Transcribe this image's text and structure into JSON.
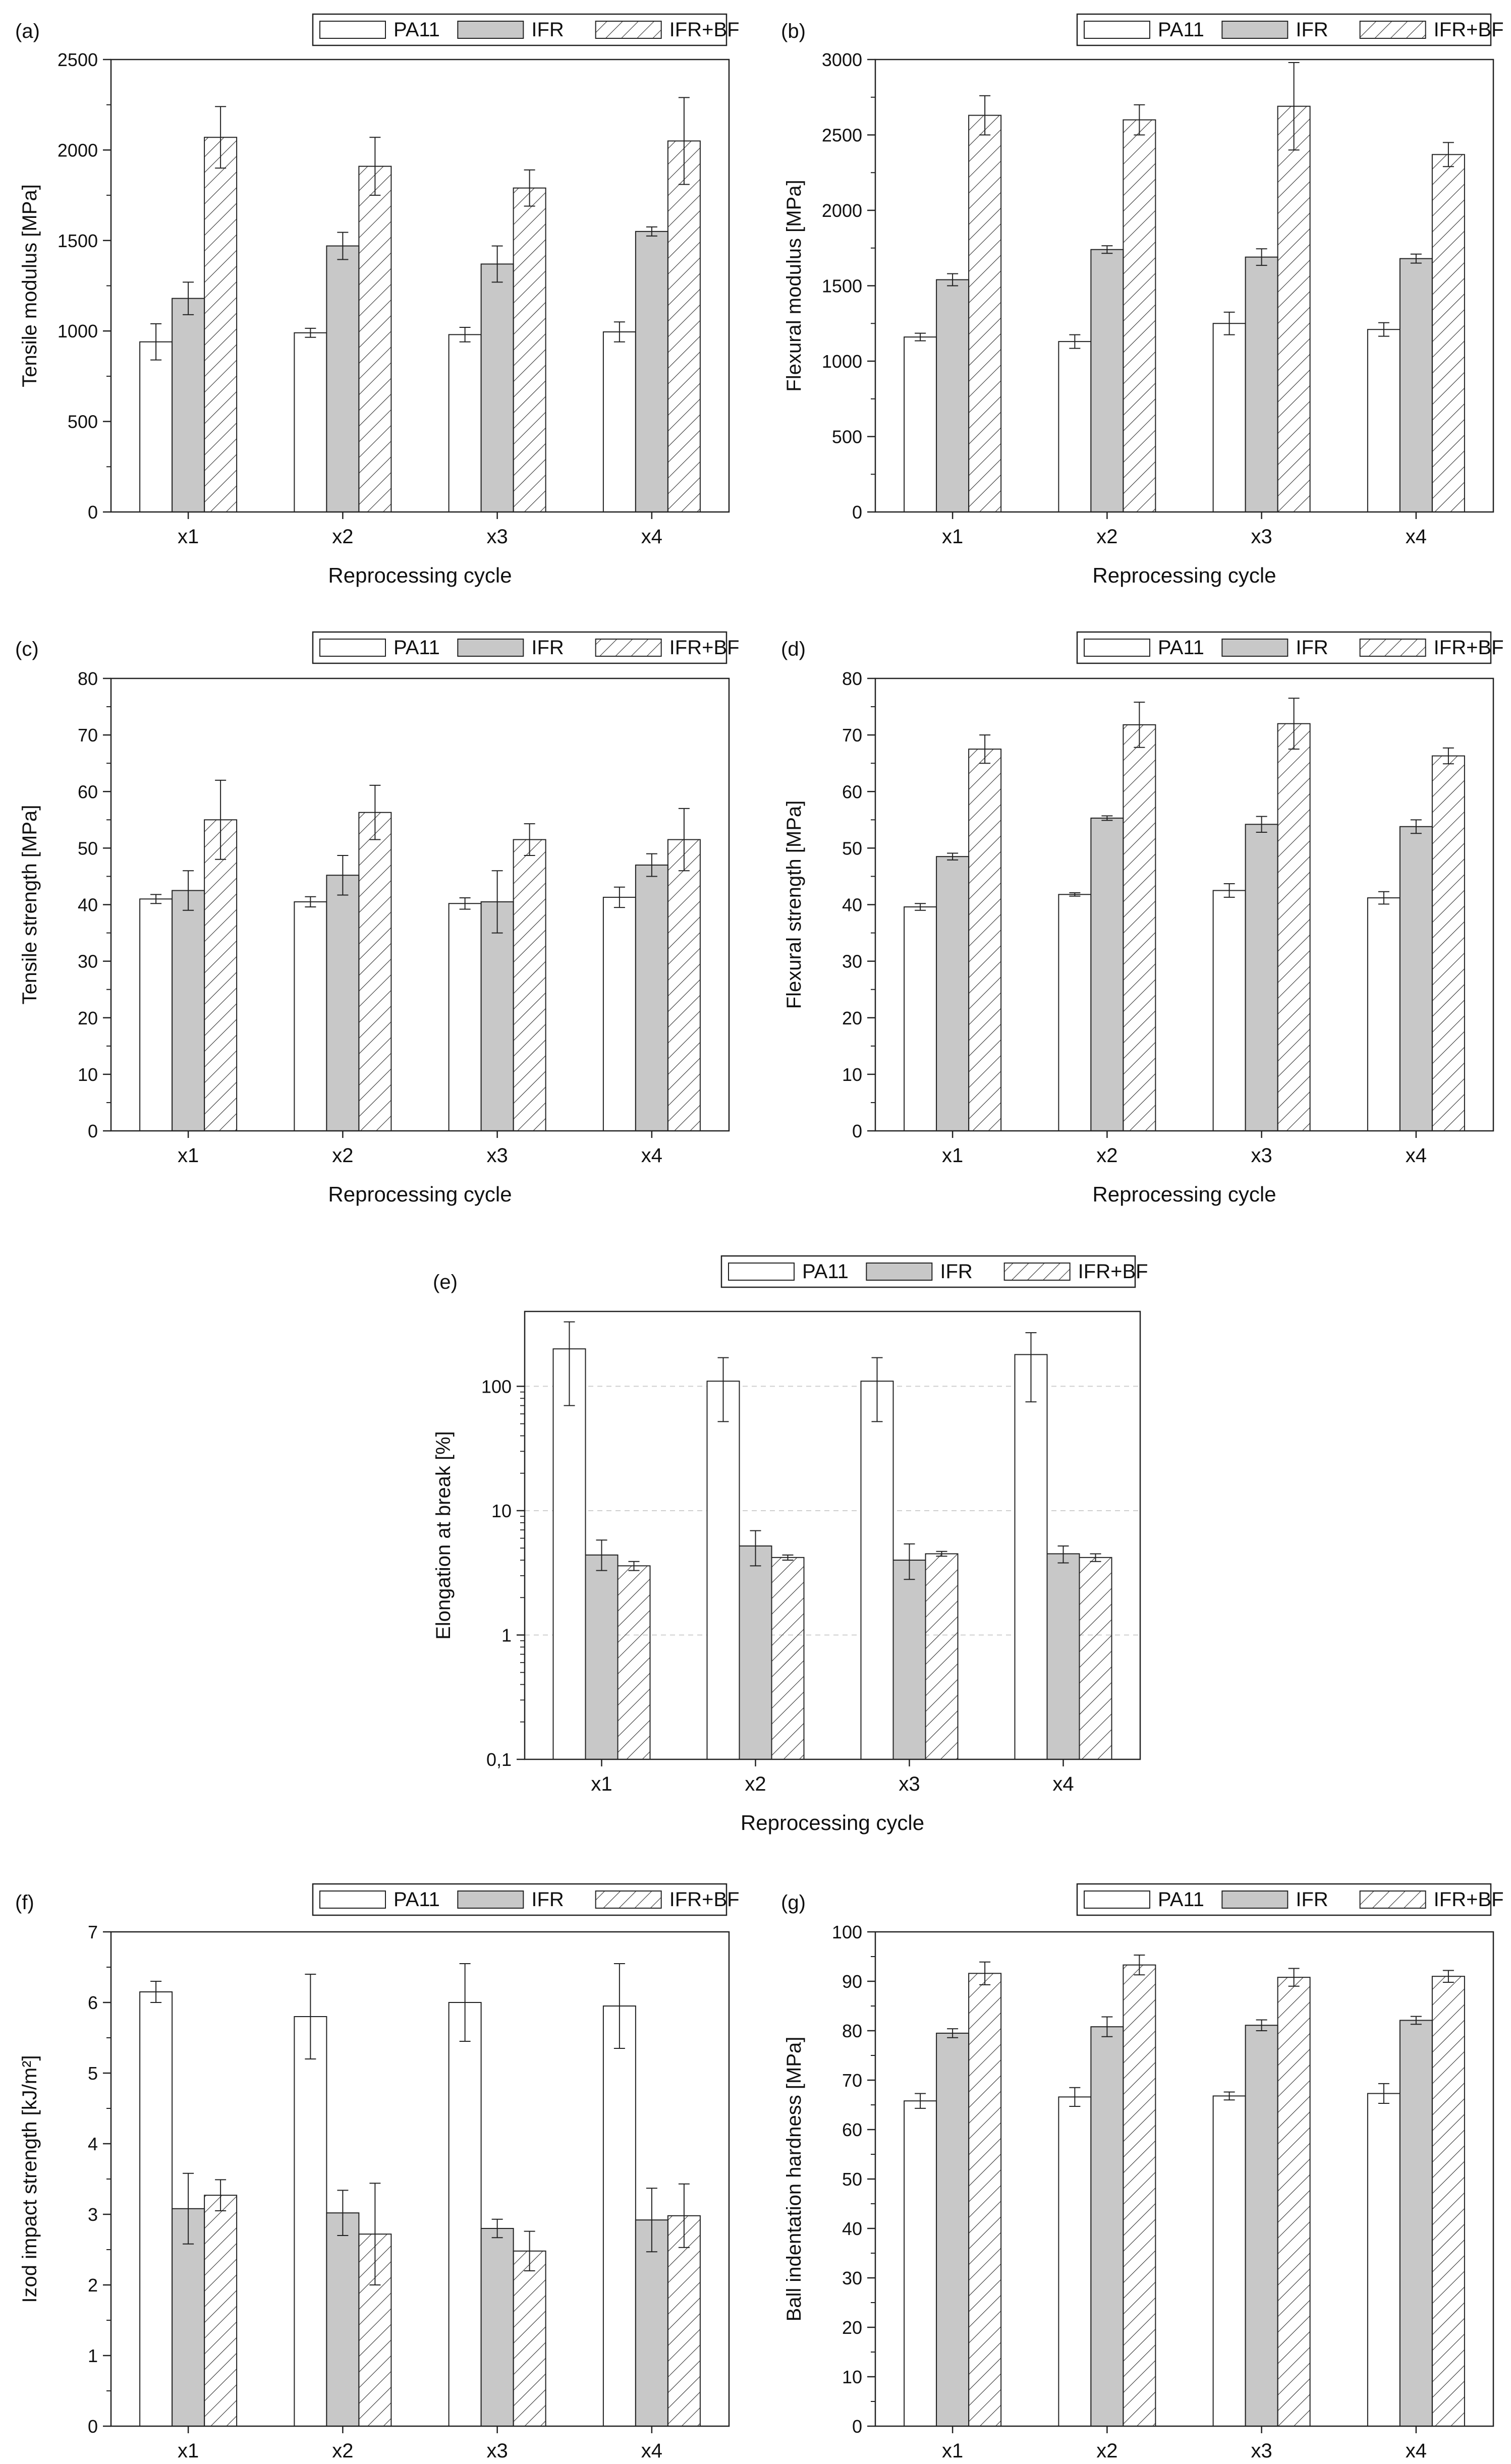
{
  "figure": {
    "series_names": [
      "PA11",
      "IFR",
      "IFR+BF"
    ],
    "series_styles": [
      {
        "fill": "#ffffff",
        "hatch": false
      },
      {
        "fill": "#c8c8c8",
        "hatch": false
      },
      {
        "fill": "#ffffff",
        "hatch": true
      }
    ]
  },
  "chart_data": [
    {
      "id": "a",
      "panel": "(a)",
      "type": "bar",
      "categories": [
        "x1",
        "x2",
        "x3",
        "x4"
      ],
      "xlabel": "Reprocessing cycle",
      "ylabel": "Tensile modulus [MPa]",
      "ylim": [
        0,
        2500
      ],
      "yticks": [
        0,
        500,
        1000,
        1500,
        2000,
        2500
      ],
      "yscale": "linear",
      "legend": "top-right",
      "series": [
        {
          "name": "PA11",
          "values": [
            940,
            990,
            980,
            995
          ],
          "errors": [
            100,
            25,
            40,
            55
          ]
        },
        {
          "name": "IFR",
          "values": [
            1180,
            1470,
            1370,
            1550
          ],
          "errors": [
            90,
            75,
            100,
            25
          ]
        },
        {
          "name": "IFR+BF",
          "values": [
            2070,
            1910,
            1790,
            2050
          ],
          "errors": [
            170,
            160,
            100,
            240
          ]
        }
      ]
    },
    {
      "id": "b",
      "panel": "(b)",
      "type": "bar",
      "categories": [
        "x1",
        "x2",
        "x3",
        "x4"
      ],
      "xlabel": "Reprocessing cycle",
      "ylabel": "Flexural modulus [MPa]",
      "ylim": [
        0,
        3000
      ],
      "yticks": [
        0,
        500,
        1000,
        1500,
        2000,
        2500,
        3000
      ],
      "yscale": "linear",
      "legend": "top-right",
      "series": [
        {
          "name": "PA11",
          "values": [
            1160,
            1130,
            1250,
            1210
          ],
          "errors": [
            25,
            45,
            75,
            45
          ]
        },
        {
          "name": "IFR",
          "values": [
            1540,
            1740,
            1690,
            1680
          ],
          "errors": [
            40,
            25,
            55,
            30
          ]
        },
        {
          "name": "IFR+BF",
          "values": [
            2630,
            2600,
            2690,
            2370
          ],
          "errors": [
            130,
            100,
            290,
            80
          ]
        }
      ]
    },
    {
      "id": "c",
      "panel": "(c)",
      "type": "bar",
      "categories": [
        "x1",
        "x2",
        "x3",
        "x4"
      ],
      "xlabel": "Reprocessing cycle",
      "ylabel": "Tensile strength [MPa]",
      "ylim": [
        0,
        80
      ],
      "yticks": [
        0,
        10,
        20,
        30,
        40,
        50,
        60,
        70,
        80
      ],
      "yscale": "linear",
      "legend": "top-right",
      "series": [
        {
          "name": "PA11",
          "values": [
            41,
            40.5,
            40.2,
            41.3
          ],
          "errors": [
            0.8,
            0.9,
            1.0,
            1.8
          ]
        },
        {
          "name": "IFR",
          "values": [
            42.5,
            45.2,
            40.5,
            47
          ],
          "errors": [
            3.5,
            3.5,
            5.5,
            2
          ]
        },
        {
          "name": "IFR+BF",
          "values": [
            55,
            56.3,
            51.5,
            51.5
          ],
          "errors": [
            7,
            4.8,
            2.8,
            5.5
          ]
        }
      ]
    },
    {
      "id": "d",
      "panel": "(d)",
      "type": "bar",
      "categories": [
        "x1",
        "x2",
        "x3",
        "x4"
      ],
      "xlabel": "Reprocessing cycle",
      "ylabel": "Flexural strength [MPa]",
      "ylim": [
        0,
        80
      ],
      "yticks": [
        0,
        10,
        20,
        30,
        40,
        50,
        60,
        70,
        80
      ],
      "yscale": "linear",
      "legend": "top-right",
      "series": [
        {
          "name": "PA11",
          "values": [
            39.6,
            41.8,
            42.5,
            41.2
          ],
          "errors": [
            0.6,
            0.3,
            1.2,
            1.1
          ]
        },
        {
          "name": "IFR",
          "values": [
            48.5,
            55.3,
            54.2,
            53.8
          ],
          "errors": [
            0.6,
            0.4,
            1.4,
            1.2
          ]
        },
        {
          "name": "IFR+BF",
          "values": [
            67.5,
            71.8,
            72,
            66.3
          ],
          "errors": [
            2.5,
            4,
            4.5,
            1.4
          ]
        }
      ]
    },
    {
      "id": "e",
      "panel": "(e)",
      "type": "bar",
      "categories": [
        "x1",
        "x2",
        "x3",
        "x4"
      ],
      "xlabel": "Reprocessing cycle",
      "ylabel": "Elongation at break [%]",
      "ylim": [
        0.1,
        400
      ],
      "yticks": [
        0.1,
        1,
        10,
        100
      ],
      "ytick_labels": [
        "0,1",
        "1",
        "10",
        "100"
      ],
      "yscale": "log",
      "legend": "top-right",
      "series": [
        {
          "name": "PA11",
          "values": [
            200,
            110,
            110,
            180
          ],
          "err_low": [
            70,
            52,
            52,
            75
          ],
          "err_high": [
            330,
            170,
            170,
            270
          ]
        },
        {
          "name": "IFR",
          "values": [
            4.4,
            5.2,
            4.0,
            4.5
          ],
          "err_low": [
            3.3,
            3.6,
            2.8,
            3.8
          ],
          "err_high": [
            5.8,
            6.9,
            5.4,
            5.2
          ]
        },
        {
          "name": "IFR+BF",
          "values": [
            3.6,
            4.2,
            4.5,
            4.2
          ],
          "err_low": [
            3.3,
            4.0,
            4.3,
            3.9
          ],
          "err_high": [
            3.9,
            4.4,
            4.7,
            4.5
          ]
        }
      ]
    },
    {
      "id": "f",
      "panel": "(f)",
      "type": "bar",
      "categories": [
        "x1",
        "x2",
        "x3",
        "x4"
      ],
      "xlabel": "Reprocessing cycle",
      "ylabel": "Izod impact strength [kJ/m²]",
      "ylim": [
        0,
        7
      ],
      "yticks": [
        0,
        1,
        2,
        3,
        4,
        5,
        6,
        7
      ],
      "yscale": "linear",
      "legend": "top-right",
      "series": [
        {
          "name": "PA11",
          "values": [
            6.15,
            5.8,
            6.0,
            5.95
          ],
          "errors": [
            0.15,
            0.6,
            0.55,
            0.6
          ]
        },
        {
          "name": "IFR",
          "values": [
            3.08,
            3.02,
            2.8,
            2.92
          ],
          "errors": [
            0.5,
            0.32,
            0.13,
            0.45
          ]
        },
        {
          "name": "IFR+BF",
          "values": [
            3.27,
            2.72,
            2.48,
            2.98
          ],
          "errors": [
            0.22,
            0.72,
            0.28,
            0.45
          ]
        }
      ]
    },
    {
      "id": "g",
      "panel": "(g)",
      "type": "bar",
      "categories": [
        "x1",
        "x2",
        "x3",
        "x4"
      ],
      "xlabel": "Reprocessing cycle",
      "ylabel": "Ball indentation hardness [MPa]",
      "ylim": [
        0,
        100
      ],
      "yticks": [
        0,
        10,
        20,
        30,
        40,
        50,
        60,
        70,
        80,
        90,
        100
      ],
      "yscale": "linear",
      "legend": "top-right",
      "series": [
        {
          "name": "PA11",
          "values": [
            65.8,
            66.6,
            66.8,
            67.3
          ],
          "errors": [
            1.5,
            1.9,
            0.8,
            2.0
          ]
        },
        {
          "name": "IFR",
          "values": [
            79.5,
            80.8,
            81.1,
            82.1
          ],
          "errors": [
            0.9,
            2.0,
            1.1,
            0.8
          ]
        },
        {
          "name": "IFR+BF",
          "values": [
            91.6,
            93.3,
            90.8,
            91.0
          ],
          "errors": [
            2.3,
            2.0,
            1.8,
            1.2
          ]
        }
      ]
    }
  ]
}
